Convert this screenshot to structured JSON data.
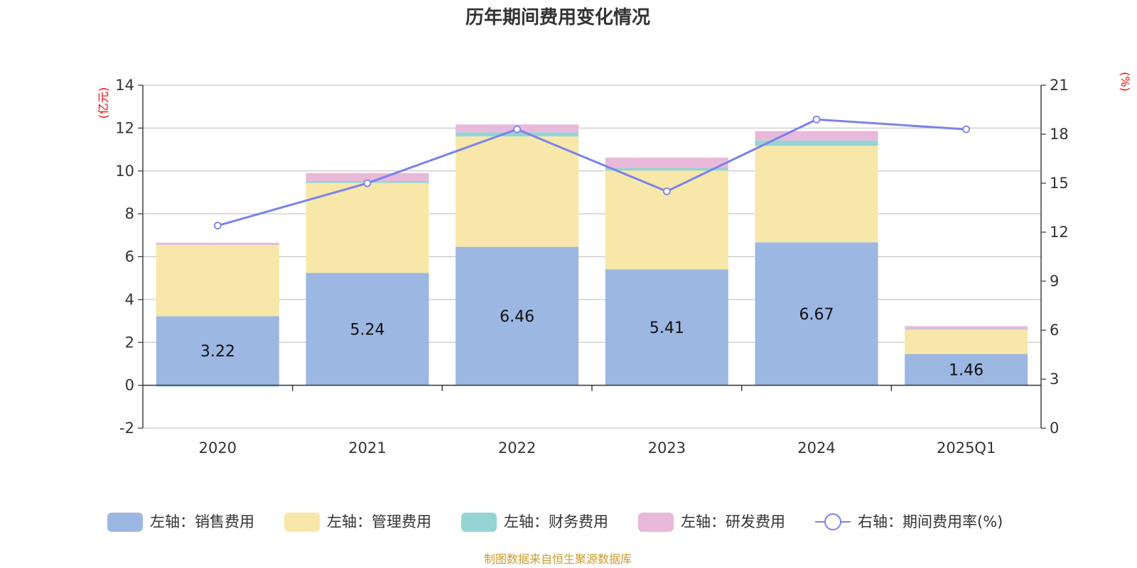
{
  "chart_data": {
    "type": "bar",
    "stacked": true,
    "title": "历年期间费用变化情况",
    "categories": [
      "2020",
      "2021",
      "2022",
      "2023",
      "2024",
      "2025Q1"
    ],
    "left_axis": {
      "unit_label": "(亿元)",
      "ylim": [
        -2,
        14
      ],
      "ticks": [
        "-2",
        "0",
        "2",
        "4",
        "6",
        "8",
        "10",
        "12",
        "14"
      ]
    },
    "right_axis": {
      "unit_label": "(%)",
      "ylim": [
        0,
        21
      ],
      "ticks": [
        "0",
        "3",
        "6",
        "9",
        "12",
        "15",
        "18",
        "21"
      ]
    },
    "series": [
      {
        "name": "左轴：销售费用",
        "color": "#9cb7e2",
        "values": [
          3.22,
          5.24,
          6.46,
          5.41,
          6.67,
          1.46
        ],
        "labels": [
          "3.22",
          "5.24",
          "6.46",
          "5.41",
          "6.67",
          "1.46"
        ]
      },
      {
        "name": "左轴：管理费用",
        "color": "#f7e7a9",
        "values": [
          3.33,
          4.2,
          5.15,
          4.61,
          4.5,
          1.14
        ]
      },
      {
        "name": "左轴：财务费用",
        "color": "#95d4d4",
        "values": [
          -0.06,
          0.09,
          0.19,
          0.12,
          0.25,
          0.04
        ]
      },
      {
        "name": "左轴：研发费用",
        "color": "#e8b9db",
        "values": [
          0.1,
          0.37,
          0.37,
          0.48,
          0.44,
          0.12
        ]
      }
    ],
    "line_series": {
      "name": "右轴：期间费用率(%)",
      "color": "#7b83ea",
      "axis": "right",
      "values": [
        12.4,
        15.0,
        18.3,
        14.5,
        18.9,
        18.3
      ]
    },
    "grid": true,
    "legend_position": "bottom"
  },
  "source": "制图数据来自恒生聚源数据库"
}
